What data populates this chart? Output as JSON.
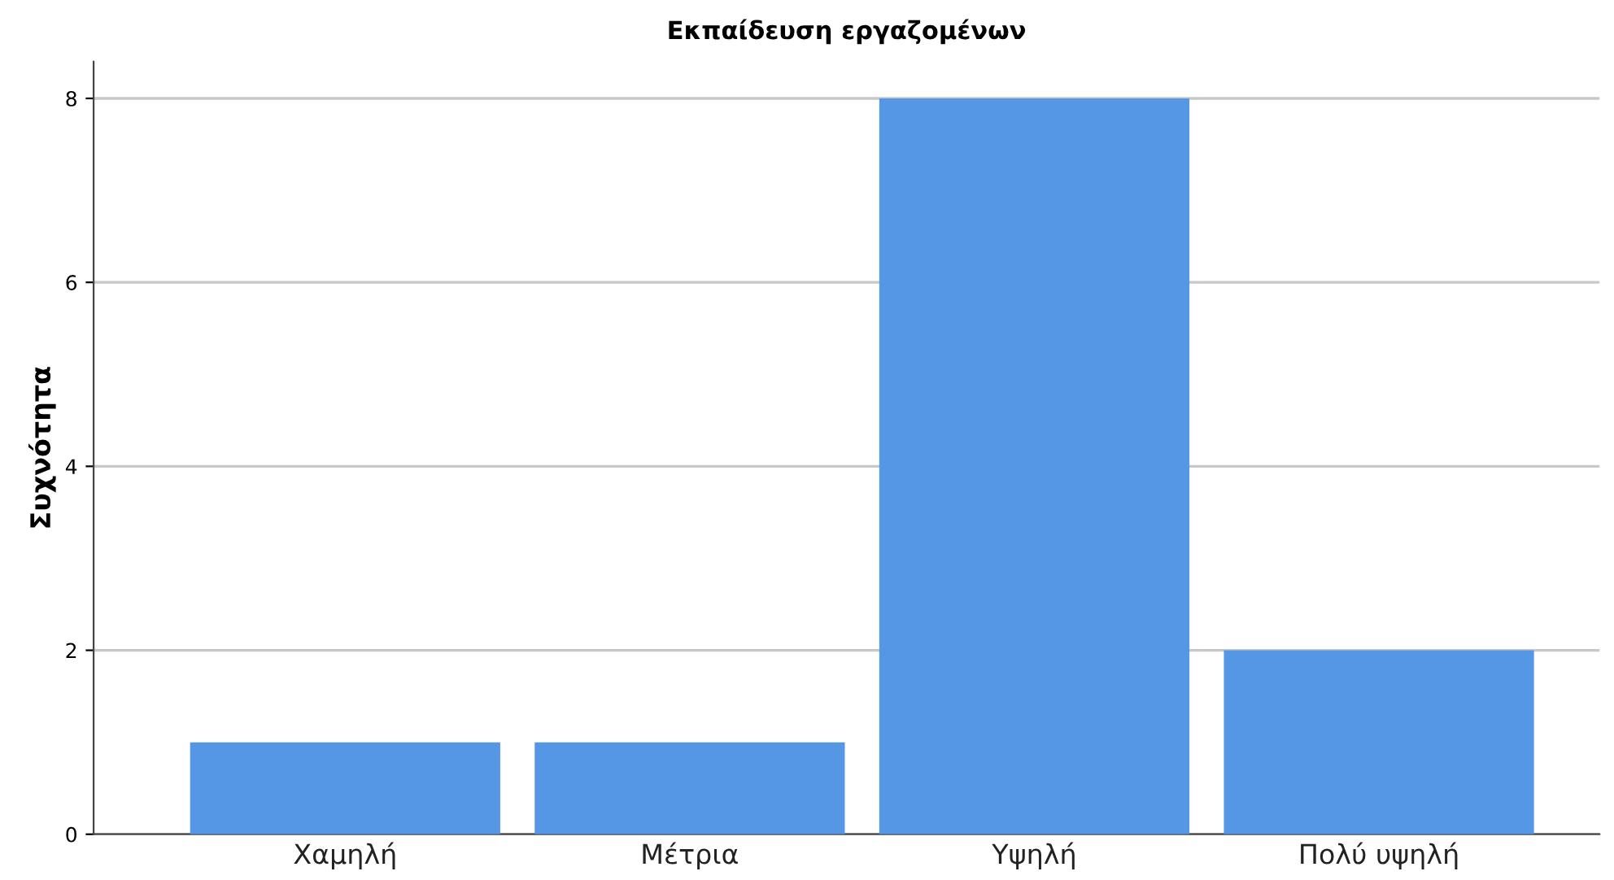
{
  "chart_data": {
    "type": "bar",
    "title": "Εκπαίδευση εργαζομένων",
    "ylabel": "Συχνότητα",
    "categories": [
      "Χαμηλή",
      "Μέτρια",
      "Υψηλή",
      "Πολύ υψηλή"
    ],
    "values": [
      1,
      1,
      8,
      2
    ],
    "color": "#5597e4",
    "ylim": [
      0,
      8.4
    ],
    "yticks": [
      0,
      2,
      4,
      6,
      8
    ],
    "grid": "y"
  }
}
